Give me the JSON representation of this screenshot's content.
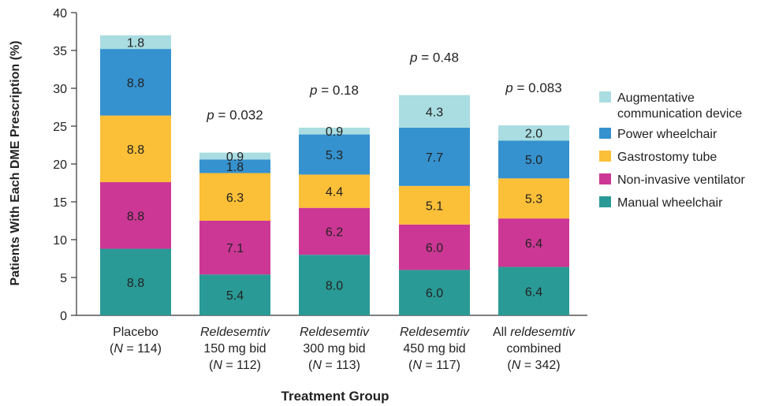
{
  "chart_data": {
    "type": "bar",
    "stacked": true,
    "ylabel": "Patients With Each DME Prescription (%)",
    "xlabel": "Treatment Group",
    "ylim": [
      0,
      40
    ],
    "yticks": [
      0,
      5,
      10,
      15,
      20,
      25,
      30,
      35,
      40
    ],
    "legend_position": "right",
    "grid": false,
    "categories": [
      {
        "lines": [
          [
            {
              "t": "Placebo",
              "i": false
            }
          ],
          [
            {
              "t": "(",
              "i": false
            },
            {
              "t": "N",
              "i": true
            },
            {
              "t": " = 114)",
              "i": false
            }
          ]
        ]
      },
      {
        "lines": [
          [
            {
              "t": "Reldesemtiv",
              "i": true
            }
          ],
          [
            {
              "t": "150 mg bid",
              "i": false
            }
          ],
          [
            {
              "t": "(",
              "i": false
            },
            {
              "t": "N",
              "i": true
            },
            {
              "t": " = 112)",
              "i": false
            }
          ]
        ]
      },
      {
        "lines": [
          [
            {
              "t": "Reldesemtiv",
              "i": true
            }
          ],
          [
            {
              "t": "300 mg bid",
              "i": false
            }
          ],
          [
            {
              "t": "(",
              "i": false
            },
            {
              "t": "N",
              "i": true
            },
            {
              "t": " = 113)",
              "i": false
            }
          ]
        ]
      },
      {
        "lines": [
          [
            {
              "t": "Reldesemtiv",
              "i": true
            }
          ],
          [
            {
              "t": "450 mg bid",
              "i": false
            }
          ],
          [
            {
              "t": "(",
              "i": false
            },
            {
              "t": "N",
              "i": true
            },
            {
              "t": " = 117)",
              "i": false
            }
          ]
        ]
      },
      {
        "lines": [
          [
            {
              "t": "All ",
              "i": false
            },
            {
              "t": "reldesemtiv",
              "i": true
            }
          ],
          [
            {
              "t": "combined",
              "i": false
            }
          ],
          [
            {
              "t": "(",
              "i": false
            },
            {
              "t": "N",
              "i": true
            },
            {
              "t": " = 342)",
              "i": false
            }
          ]
        ]
      }
    ],
    "series": [
      {
        "name": "Manual wheelchair",
        "color": "#2a9a96",
        "values": [
          8.8,
          5.4,
          8.0,
          6.0,
          6.4
        ],
        "labels": [
          "8.8",
          "5.4",
          "8.0",
          "6.0",
          "6.4"
        ]
      },
      {
        "name": "Non-invasive ventilator",
        "color": "#cc3795",
        "values": [
          8.8,
          7.1,
          6.2,
          6.0,
          6.4
        ],
        "labels": [
          "8.8",
          "7.1",
          "6.2",
          "6.0",
          "6.4"
        ]
      },
      {
        "name": "Gastrostomy tube",
        "color": "#fbbf38",
        "values": [
          8.8,
          6.3,
          4.4,
          5.1,
          5.3
        ],
        "labels": [
          "8.8",
          "6.3",
          "4.4",
          "5.1",
          "5.3"
        ]
      },
      {
        "name": "Power wheelchair",
        "color": "#3592cf",
        "values": [
          8.8,
          1.8,
          5.3,
          7.7,
          5.0
        ],
        "labels": [
          "8.8",
          "1.8",
          "5.3",
          "7.7",
          "5.0"
        ]
      },
      {
        "name": "Augmentative communication device",
        "legend_lines": [
          "Augmentative",
          "communication device"
        ],
        "color": "#a9dde1",
        "values": [
          1.8,
          0.9,
          0.9,
          4.3,
          2.0
        ],
        "labels": [
          "1.8",
          "0.9",
          "0.9",
          "4.3",
          "2.0"
        ]
      }
    ],
    "annotations": [
      null,
      "= 0.032",
      "= 0.18",
      "= 0.48",
      "= 0.083"
    ],
    "annotation_prefix": "p"
  }
}
